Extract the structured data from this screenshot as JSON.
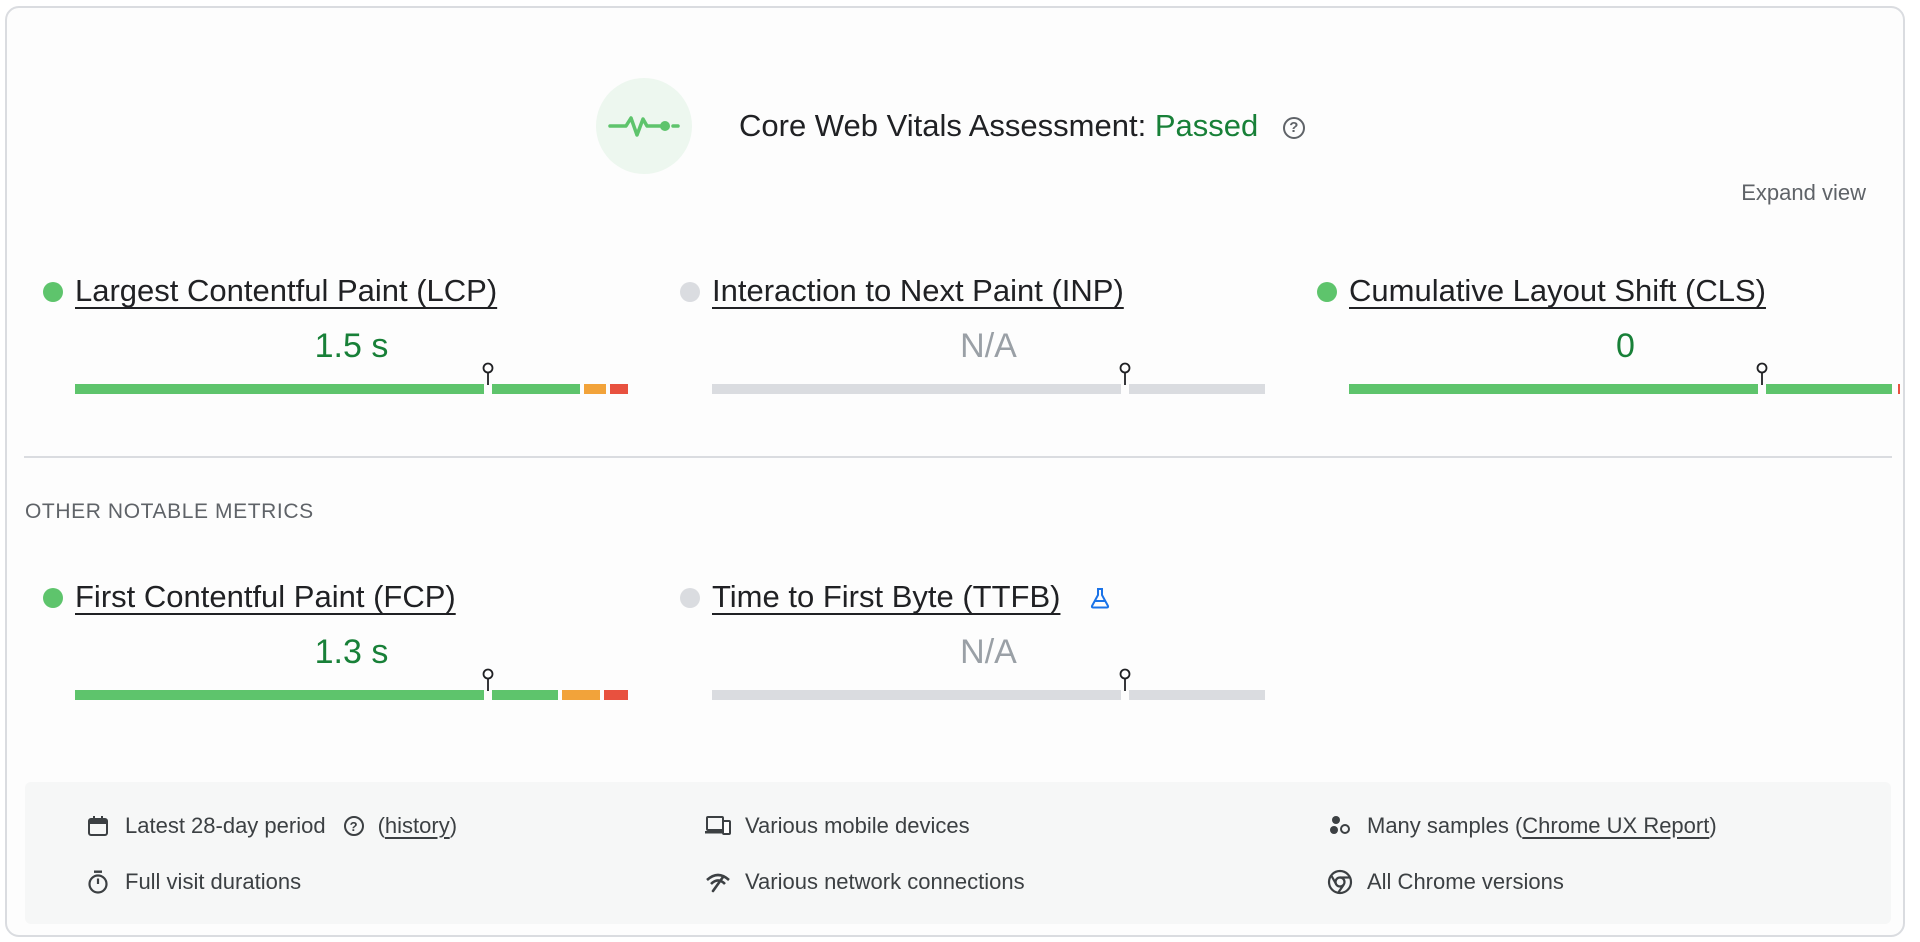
{
  "header": {
    "title_prefix": "Core Web Vitals Assessment:",
    "status": "Passed",
    "help_glyph": "?",
    "expand_label": "Expand view"
  },
  "colors": {
    "good": "#5ec46c",
    "good_text": "#188038",
    "needs_improvement": "#f2a33a",
    "poor": "#e8513f",
    "na": "#dadce0"
  },
  "core_metrics": [
    {
      "name": "Largest Contentful Paint (LCP)",
      "value": "1.5 s",
      "status": "good",
      "percentile_marker": 0.75
    },
    {
      "name": "Interaction to Next Paint (INP)",
      "value": "N/A",
      "status": "na",
      "percentile_marker": 0.75
    },
    {
      "name": "Cumulative Layout Shift (CLS)",
      "value": "0",
      "status": "good",
      "percentile_marker": 0.75
    }
  ],
  "other_section_label": "OTHER NOTABLE METRICS",
  "other_metrics": [
    {
      "name": "First Contentful Paint (FCP)",
      "value": "1.3 s",
      "status": "good",
      "percentile_marker": 0.75
    },
    {
      "name": "Time to First Byte (TTFB)",
      "value": "N/A",
      "status": "na",
      "percentile_marker": 0.75,
      "icon": "flask-icon"
    }
  ],
  "info": {
    "period_label": "Latest 28-day period",
    "history_link": "history",
    "devices": "Various mobile devices",
    "samples_prefix": "Many samples (",
    "samples_link": "Chrome UX Report",
    "samples_suffix": ")",
    "durations": "Full visit durations",
    "network": "Various network connections",
    "versions": "All Chrome versions"
  }
}
